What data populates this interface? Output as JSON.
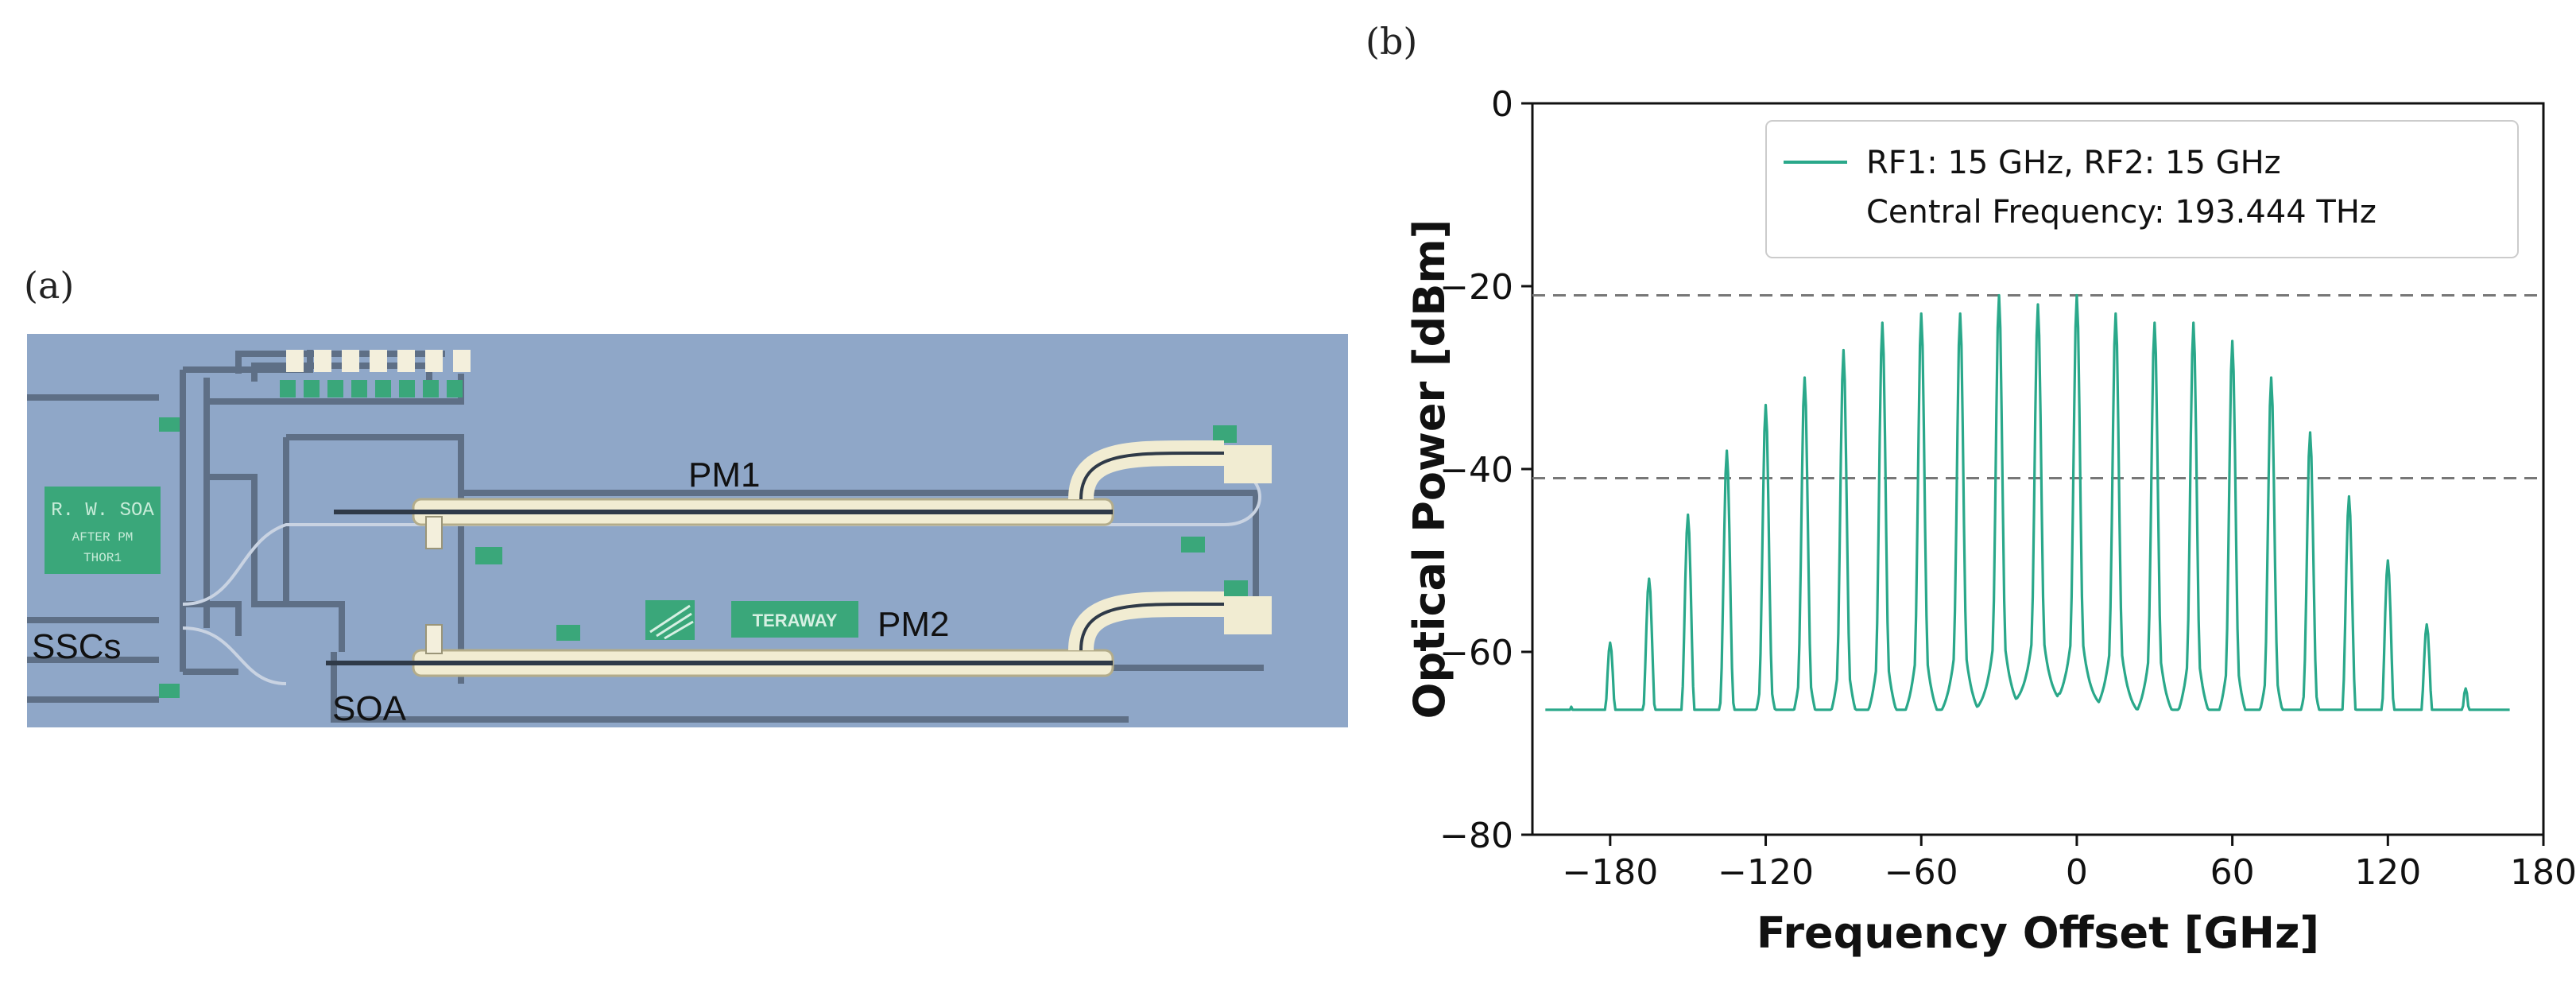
{
  "panel_a": {
    "label": "(a)",
    "chip_labels": {
      "pm1": "PM1",
      "pm2": "PM2",
      "sscs": "SSCs",
      "soa": "SOA",
      "logo": "TERAWAY",
      "mask_label": [
        "R. W. SOA",
        "AFTER PM",
        "THOR1"
      ]
    },
    "colors": {
      "substrate": "#8fa7c8",
      "pad": "#3aa77a",
      "waveguide": "#f1ecd2",
      "trace": "#5e6f86"
    }
  },
  "panel_b": {
    "label": "(b)"
  },
  "chart_data": {
    "type": "line",
    "title": "",
    "xlabel": "Frequency Offset [GHz]",
    "ylabel": "Optical Power [dBm]",
    "xlim": [
      -210,
      180
    ],
    "ylim": [
      -80,
      0
    ],
    "xticks": [
      -180,
      -120,
      -60,
      0,
      60,
      120,
      180
    ],
    "yticks": [
      0,
      -20,
      -40,
      -60,
      -80
    ],
    "xtick_labels": [
      "−180",
      "−120",
      "−60",
      "0",
      "60",
      "120",
      "180"
    ],
    "ytick_labels": [
      "0",
      "−20",
      "−40",
      "−60",
      "−80"
    ],
    "legend": {
      "position": "top-right",
      "lines": [
        "RF1: 15 GHz, RF2: 15 GHz",
        "Central Frequency: 193.444 THz"
      ]
    },
    "reference_lines": [
      -21,
      -41
    ],
    "series": [
      {
        "color": "#2aa88a",
        "noise_floor_dbm": -71,
        "line_spacing_ghz": 15,
        "x": [
          -195,
          -180,
          -165,
          -150,
          -135,
          -120,
          -105,
          -90,
          -75,
          -60,
          -45,
          -30,
          -15,
          0,
          15,
          30,
          45,
          60,
          75,
          90,
          105,
          120,
          135,
          150
        ],
        "peaks": [
          -66,
          -59,
          -52,
          -45,
          -38,
          -33,
          -30,
          -27,
          -24,
          -23,
          -23,
          -21,
          -22,
          -21,
          -23,
          -24,
          -24,
          -26,
          -30,
          -36,
          -43,
          -50,
          -57,
          -64
        ]
      }
    ]
  }
}
